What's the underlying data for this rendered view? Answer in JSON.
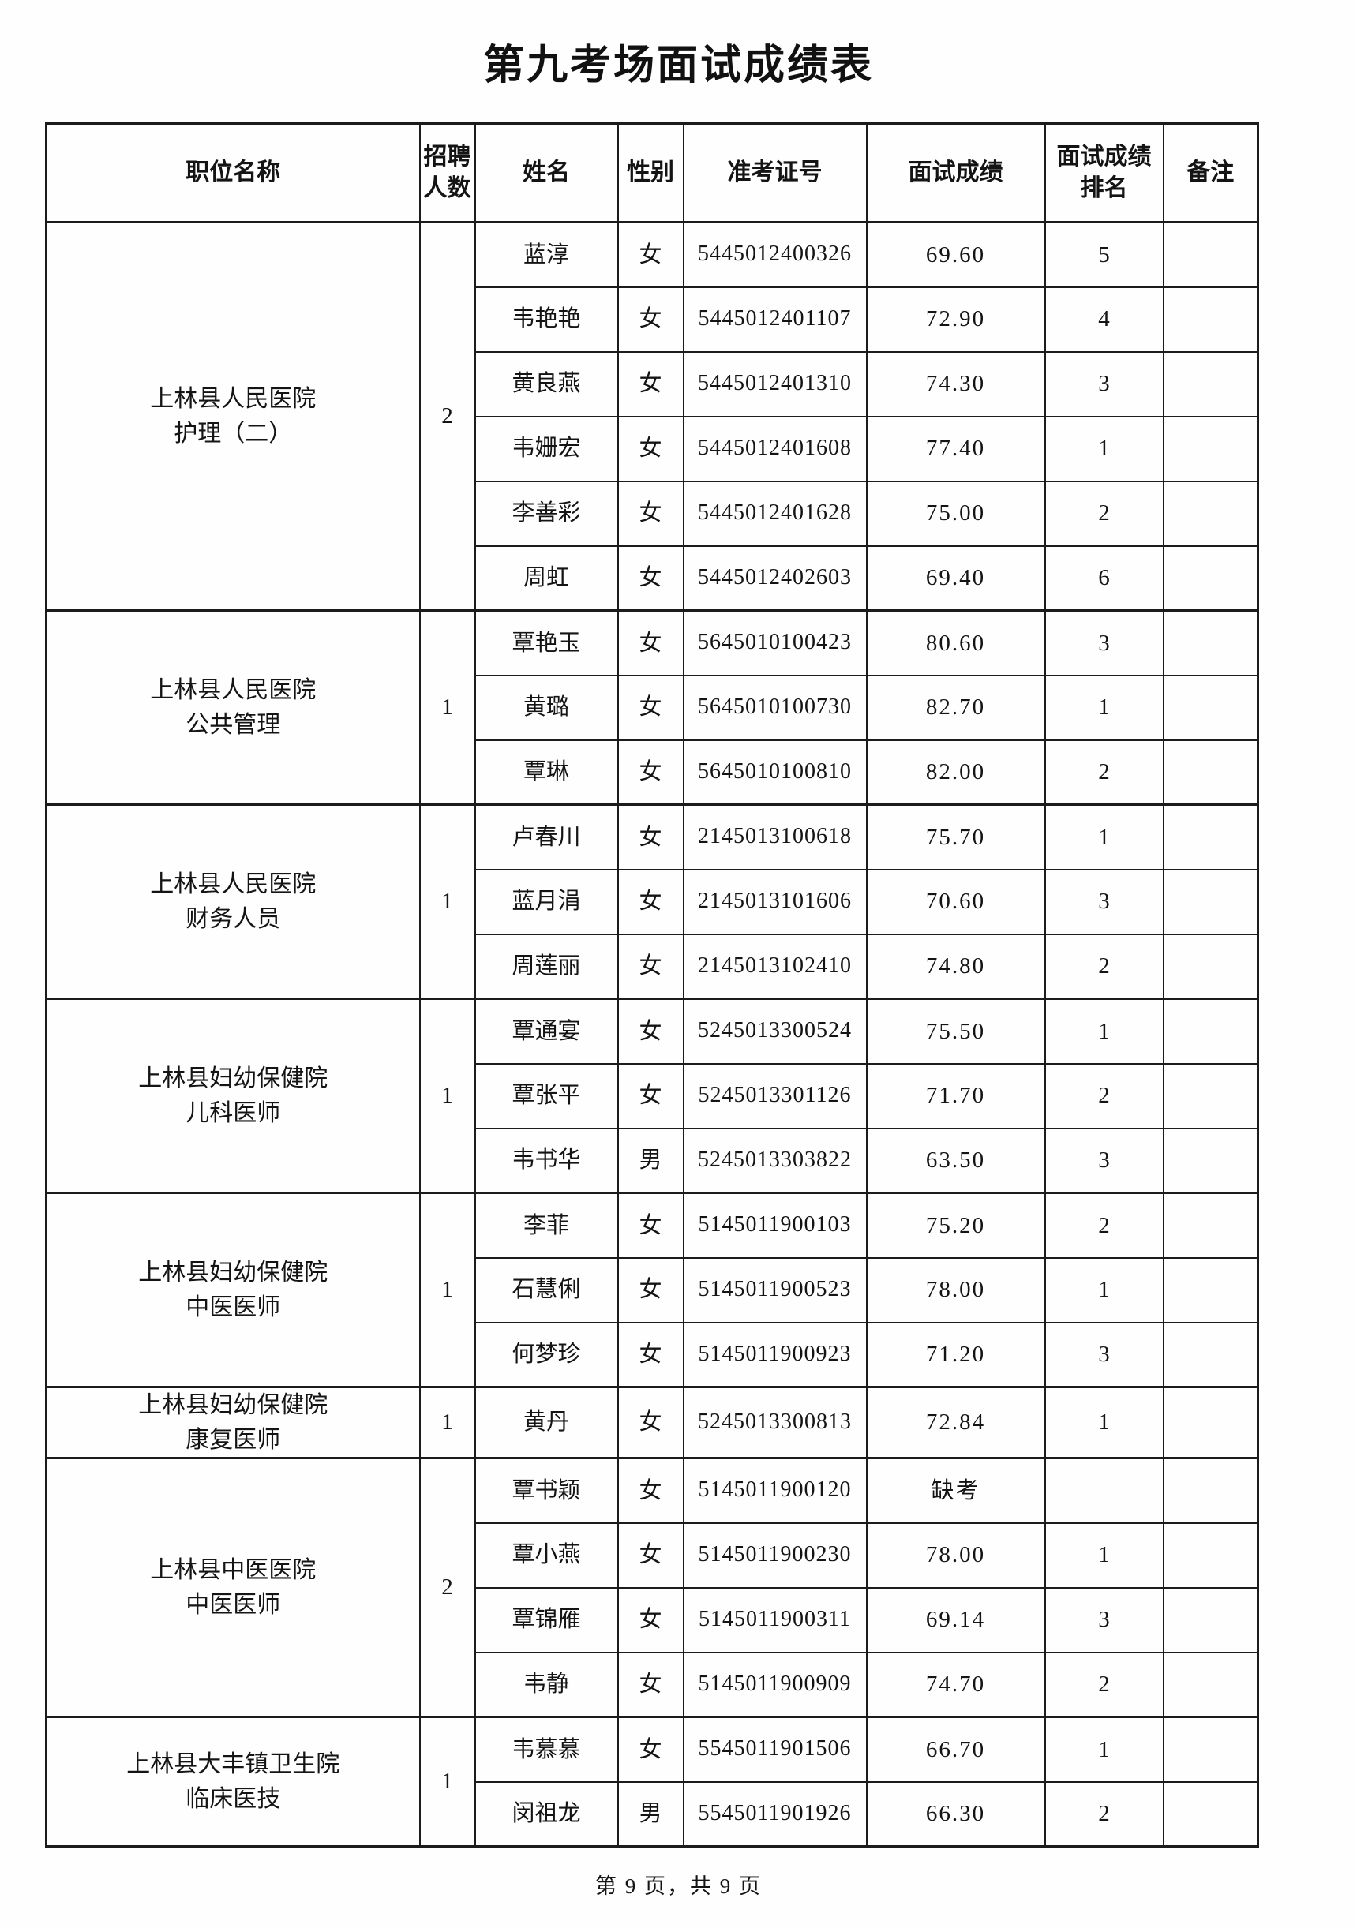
{
  "title": "第九考场面试成绩表",
  "footer": "第 9 页，共 9 页",
  "table": {
    "headers": [
      "职位名称",
      "招聘\n人数",
      "姓名",
      "性别",
      "准考证号",
      "面试成绩",
      "面试成绩\n排名",
      "备注"
    ],
    "groups": [
      {
        "position": "上林县人民医院\n护理（二）",
        "recruits": "2",
        "rows": [
          {
            "name": "蓝淳",
            "gender": "女",
            "ticket": "5445012400326",
            "score": "69.60",
            "rank": "5",
            "note": ""
          },
          {
            "name": "韦艳艳",
            "gender": "女",
            "ticket": "5445012401107",
            "score": "72.90",
            "rank": "4",
            "note": ""
          },
          {
            "name": "黄良燕",
            "gender": "女",
            "ticket": "5445012401310",
            "score": "74.30",
            "rank": "3",
            "note": ""
          },
          {
            "name": "韦姗宏",
            "gender": "女",
            "ticket": "5445012401608",
            "score": "77.40",
            "rank": "1",
            "note": ""
          },
          {
            "name": "李善彩",
            "gender": "女",
            "ticket": "5445012401628",
            "score": "75.00",
            "rank": "2",
            "note": ""
          },
          {
            "name": "周虹",
            "gender": "女",
            "ticket": "5445012402603",
            "score": "69.40",
            "rank": "6",
            "note": ""
          }
        ]
      },
      {
        "position": "上林县人民医院\n公共管理",
        "recruits": "1",
        "rows": [
          {
            "name": "覃艳玉",
            "gender": "女",
            "ticket": "5645010100423",
            "score": "80.60",
            "rank": "3",
            "note": ""
          },
          {
            "name": "黄璐",
            "gender": "女",
            "ticket": "5645010100730",
            "score": "82.70",
            "rank": "1",
            "note": ""
          },
          {
            "name": "覃琳",
            "gender": "女",
            "ticket": "5645010100810",
            "score": "82.00",
            "rank": "2",
            "note": ""
          }
        ]
      },
      {
        "position": "上林县人民医院\n财务人员",
        "recruits": "1",
        "rows": [
          {
            "name": "卢春川",
            "gender": "女",
            "ticket": "2145013100618",
            "score": "75.70",
            "rank": "1",
            "note": ""
          },
          {
            "name": "蓝月涓",
            "gender": "女",
            "ticket": "2145013101606",
            "score": "70.60",
            "rank": "3",
            "note": ""
          },
          {
            "name": "周莲丽",
            "gender": "女",
            "ticket": "2145013102410",
            "score": "74.80",
            "rank": "2",
            "note": ""
          }
        ]
      },
      {
        "position": "上林县妇幼保健院\n儿科医师",
        "recruits": "1",
        "rows": [
          {
            "name": "覃通宴",
            "gender": "女",
            "ticket": "5245013300524",
            "score": "75.50",
            "rank": "1",
            "note": ""
          },
          {
            "name": "覃张平",
            "gender": "女",
            "ticket": "5245013301126",
            "score": "71.70",
            "rank": "2",
            "note": ""
          },
          {
            "name": "韦书华",
            "gender": "男",
            "ticket": "5245013303822",
            "score": "63.50",
            "rank": "3",
            "note": ""
          }
        ]
      },
      {
        "position": "上林县妇幼保健院\n中医医师",
        "recruits": "1",
        "rows": [
          {
            "name": "李菲",
            "gender": "女",
            "ticket": "5145011900103",
            "score": "75.20",
            "rank": "2",
            "note": ""
          },
          {
            "name": "石慧俐",
            "gender": "女",
            "ticket": "5145011900523",
            "score": "78.00",
            "rank": "1",
            "note": ""
          },
          {
            "name": "何梦珍",
            "gender": "女",
            "ticket": "5145011900923",
            "score": "71.20",
            "rank": "3",
            "note": ""
          }
        ]
      },
      {
        "position": "上林县妇幼保健院\n康复医师",
        "recruits": "1",
        "rows": [
          {
            "name": "黄丹",
            "gender": "女",
            "ticket": "5245013300813",
            "score": "72.84",
            "rank": "1",
            "note": ""
          }
        ]
      },
      {
        "position": "上林县中医医院\n中医医师",
        "recruits": "2",
        "rows": [
          {
            "name": "覃书颖",
            "gender": "女",
            "ticket": "5145011900120",
            "score": "缺考",
            "rank": "",
            "note": ""
          },
          {
            "name": "覃小燕",
            "gender": "女",
            "ticket": "5145011900230",
            "score": "78.00",
            "rank": "1",
            "note": ""
          },
          {
            "name": "覃锦雁",
            "gender": "女",
            "ticket": "5145011900311",
            "score": "69.14",
            "rank": "3",
            "note": ""
          },
          {
            "name": "韦静",
            "gender": "女",
            "ticket": "5145011900909",
            "score": "74.70",
            "rank": "2",
            "note": ""
          }
        ]
      },
      {
        "position": "上林县大丰镇卫生院\n临床医技",
        "recruits": "1",
        "rows": [
          {
            "name": "韦慕慕",
            "gender": "女",
            "ticket": "5545011901506",
            "score": "66.70",
            "rank": "1",
            "note": ""
          },
          {
            "name": "闵祖龙",
            "gender": "男",
            "ticket": "5545011901926",
            "score": "66.30",
            "rank": "2",
            "note": ""
          }
        ]
      }
    ]
  }
}
